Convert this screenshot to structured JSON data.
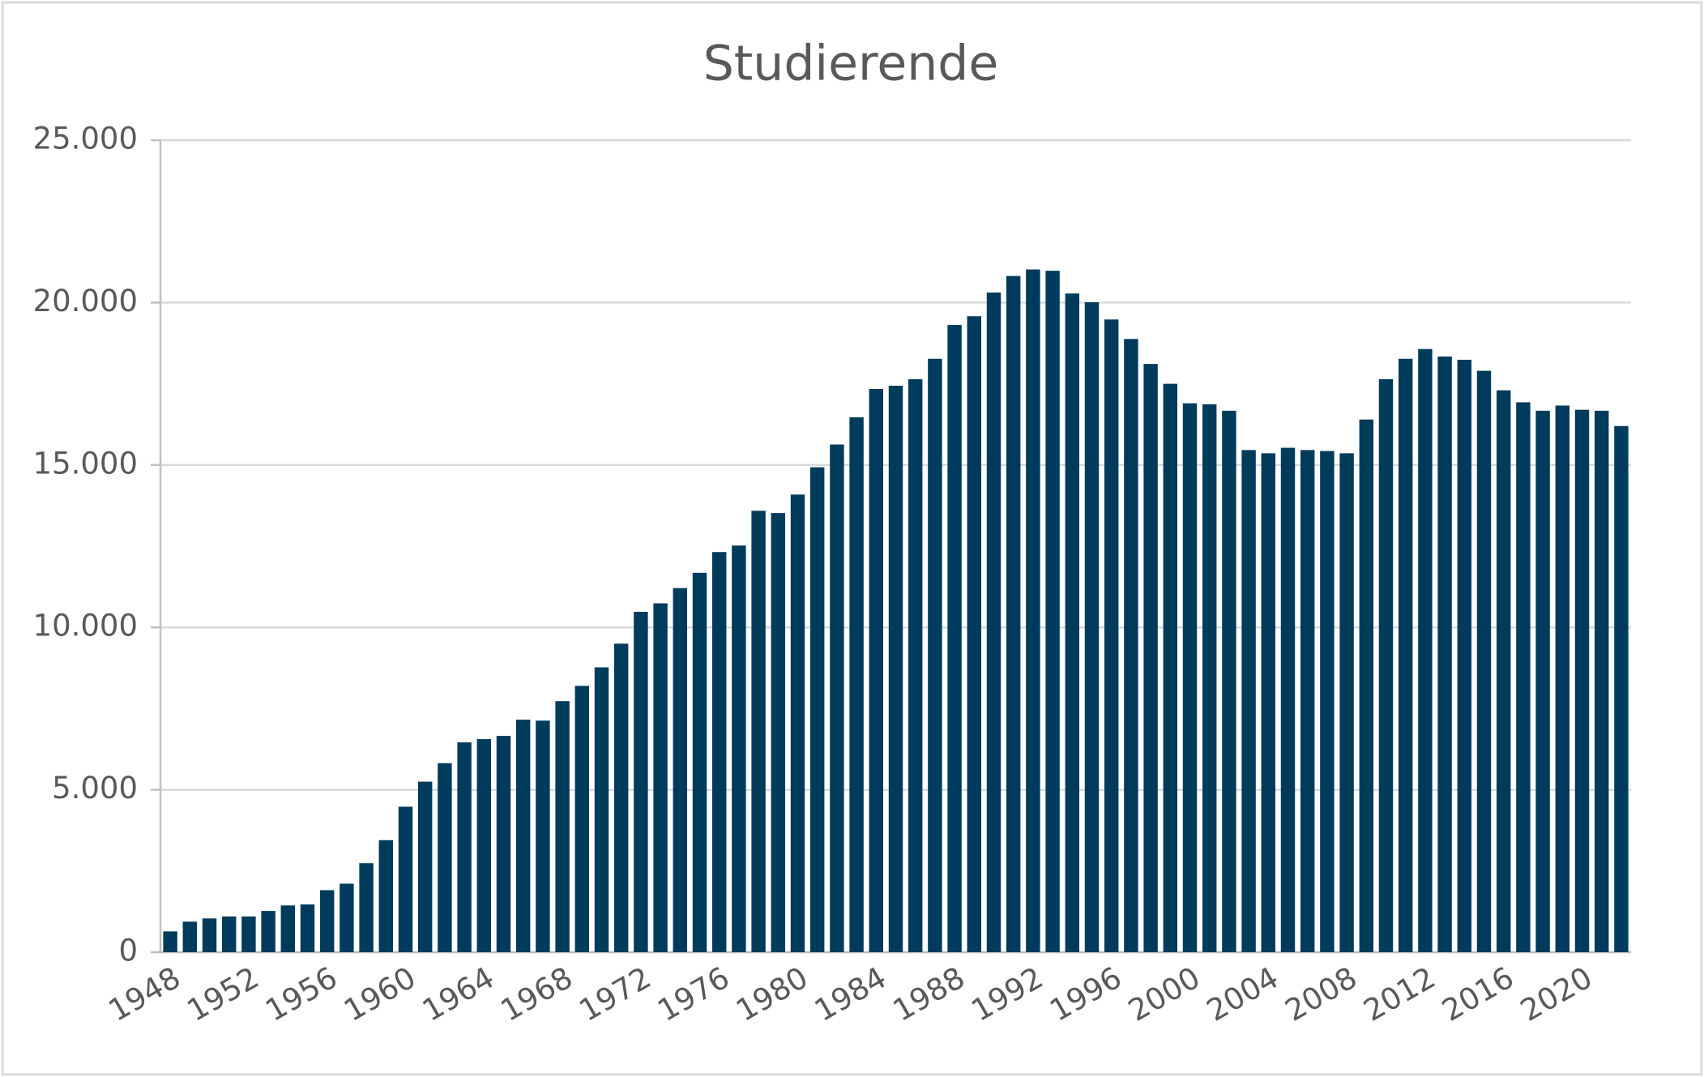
{
  "chart_data": {
    "type": "bar",
    "title": "Studierende",
    "categories": [
      "1948",
      null,
      null,
      null,
      "1952",
      null,
      null,
      null,
      "1956",
      null,
      null,
      null,
      "1960",
      null,
      null,
      null,
      "1964",
      null,
      null,
      null,
      "1968",
      null,
      null,
      null,
      "1972",
      null,
      null,
      null,
      "1976",
      null,
      null,
      null,
      "1980",
      null,
      null,
      null,
      "1984",
      null,
      null,
      null,
      "1988",
      null,
      null,
      null,
      "1992",
      null,
      null,
      null,
      "1996",
      null,
      null,
      null,
      "2000",
      null,
      null,
      null,
      "2004",
      null,
      null,
      null,
      "2008",
      null,
      null,
      null,
      "2012",
      null,
      null,
      null,
      "2016",
      null,
      null,
      null,
      "2020",
      null,
      null
    ],
    "values": [
      640,
      940,
      1040,
      1100,
      1100,
      1270,
      1440,
      1470,
      1910,
      2110,
      2740,
      3450,
      4480,
      5250,
      5820,
      6460,
      6560,
      6660,
      7160,
      7130,
      7730,
      8200,
      8770,
      9500,
      10480,
      10740,
      11210,
      11680,
      12320,
      12520,
      13590,
      13520,
      14090,
      14930,
      15630,
      16470,
      17340,
      17440,
      17640,
      18270,
      19310,
      19580,
      20310,
      20820,
      21020,
      20980,
      20280,
      20010,
      19480,
      18880,
      18110,
      17500,
      16900,
      16870,
      16670,
      15460,
      15360,
      15530,
      15460,
      15430,
      15360,
      16400,
      17640,
      18270,
      18570,
      18340,
      18240,
      17900,
      17300,
      16930,
      16670,
      16830,
      16700,
      16670,
      16200
    ],
    "color": "#003b5c",
    "ylim": [
      0,
      25000
    ],
    "yticks": [
      0,
      {
        "value": 5000,
        "label": "5.000"
      },
      {
        "value": 10000,
        "label": "10.000"
      },
      {
        "value": 15000,
        "label": "15.000"
      },
      {
        "value": 20000,
        "label": "20.000"
      },
      {
        "value": 25000,
        "label": "25.000"
      }
    ],
    "grid": true
  }
}
